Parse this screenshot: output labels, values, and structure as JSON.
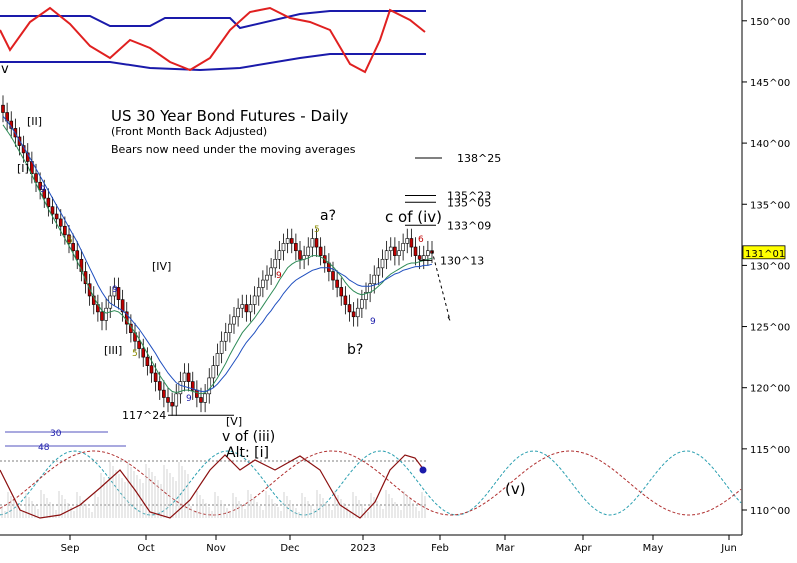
{
  "chart_data": {
    "type": "candlestick",
    "title": "US 30 Year Bond Futures - Daily",
    "subtitle": "(Front Month Back Adjusted)",
    "note": "Bears now need under the moving averages",
    "x_ticks": [
      "Sep",
      "Oct",
      "Nov",
      "Dec",
      "2023",
      "Feb",
      "Mar",
      "Apr",
      "May",
      "Jun"
    ],
    "y_ticks": [
      "150^00",
      "145^00",
      "140^00",
      "135^00",
      "130^00",
      "125^00",
      "120^00",
      "115^00",
      "110^00"
    ],
    "ylim": [
      109.5,
      152.5
    ],
    "last_price_label": "131^01",
    "last_price": 131.03,
    "price_levels": [
      {
        "label": "138^25",
        "value": 138.78
      },
      {
        "label": "135^23",
        "value": 135.72
      },
      {
        "label": "135^05",
        "value": 135.16
      },
      {
        "label": "133^09",
        "value": 133.28
      },
      {
        "label": "130^13",
        "value": 130.41
      },
      {
        "label": "117^24",
        "value": 117.75
      }
    ],
    "wave_labels": [
      "[II]",
      "[I]",
      "[IV]",
      "[III]",
      "[V]",
      "v of (iii)",
      "Alt: [i]",
      "a?",
      "b?",
      "c of (iv)",
      "(v)",
      "v"
    ],
    "count_labels": [
      "9",
      "5",
      "9",
      "5",
      "9",
      "9",
      "5",
      "9",
      "6"
    ],
    "cycle_labels": [
      "30",
      "48"
    ],
    "closes": [
      142.5,
      141.8,
      141.2,
      140.5,
      139.8,
      139.2,
      138.5,
      137.5,
      136.8,
      136.2,
      135.5,
      134.8,
      134.2,
      133.8,
      133.2,
      132.5,
      131.8,
      131.2,
      130.5,
      129.5,
      128.5,
      127.5,
      126.8,
      126.2,
      125.5,
      126.5,
      127.5,
      128.2,
      127.2,
      126.2,
      125.2,
      124.5,
      123.8,
      123.2,
      122.5,
      121.8,
      121.2,
      120.5,
      119.8,
      119.2,
      118.8,
      118.5,
      119.5,
      120.5,
      121.2,
      120.5,
      119.8,
      119.2,
      118.8,
      119.5,
      120.8,
      121.8,
      122.8,
      123.8,
      124.5,
      125.2,
      125.8,
      126.5,
      126.8,
      126.2,
      126.8,
      127.5,
      128.2,
      128.8,
      129.2,
      129.8,
      130.5,
      131.2,
      131.8,
      132.2,
      131.8,
      131.2,
      130.5,
      130.8,
      131.5,
      132.2,
      131.5,
      130.8,
      130.2,
      129.5,
      128.8,
      128.2,
      127.5,
      126.8,
      126.2,
      125.8,
      126.5,
      127.2,
      127.8,
      128.5,
      129.2,
      129.8,
      130.5,
      131.2,
      131.5,
      130.8,
      131.2,
      131.8,
      132.2,
      131.5,
      130.8,
      130.5,
      130.8,
      131.2,
      131.0
    ],
    "ma_fast": [
      141.5,
      141.0,
      140.5,
      139.9,
      139.3,
      138.7,
      138.1,
      137.4,
      136.7,
      136.0,
      135.3,
      134.6,
      134.0,
      133.4,
      132.8,
      132.2,
      131.6,
      131.0,
      130.3,
      129.6,
      128.8,
      128.1,
      127.4,
      126.8,
      126.3,
      126.1,
      126.2,
      126.3,
      126.2,
      125.9,
      125.5,
      125.0,
      124.5,
      124.0,
      123.4,
      122.8,
      122.2,
      121.6,
      121.0,
      120.5,
      120.0,
      119.7,
      119.6,
      119.7,
      119.8,
      119.8,
      119.7,
      119.6,
      119.5,
      119.6,
      119.9,
      120.3,
      120.8,
      121.4,
      122.0,
      122.7,
      123.3,
      123.9,
      124.5,
      124.9,
      125.3,
      125.7,
      126.2,
      126.7,
      127.2,
      127.7,
      128.2,
      128.8,
      129.3,
      129.8,
      130.1,
      130.3,
      130.4,
      130.5,
      130.6,
      130.8,
      130.8,
      130.7,
      130.5,
      130.2,
      129.9,
      129.5,
      129.1,
      128.6,
      128.2,
      127.9,
      127.7,
      127.6,
      127.7,
      127.8,
      128.0,
      128.3,
      128.6,
      129.0,
      129.3,
      129.5,
      129.7,
      129.9,
      130.1,
      130.2,
      130.2,
      130.3,
      130.4,
      130.5,
      130.6
    ],
    "ma_slow": [
      142.2,
      141.8,
      141.3,
      140.8,
      140.2,
      139.7,
      139.1,
      138.5,
      137.9,
      137.3,
      136.7,
      136.1,
      135.5,
      134.9,
      134.3,
      133.7,
      133.1,
      132.5,
      131.9,
      131.2,
      130.5,
      129.8,
      129.1,
      128.4,
      127.8,
      127.3,
      126.9,
      126.7,
      126.5,
      126.3,
      126.0,
      125.6,
      125.2,
      124.8,
      124.3,
      123.8,
      123.3,
      122.8,
      122.2,
      121.7,
      121.2,
      120.8,
      120.4,
      120.2,
      120.1,
      120.0,
      119.9,
      119.8,
      119.7,
      119.7,
      119.8,
      120.0,
      120.3,
      120.7,
      121.1,
      121.6,
      122.1,
      122.6,
      123.2,
      123.7,
      124.1,
      124.5,
      125.0,
      125.4,
      125.9,
      126.3,
      126.8,
      127.2,
      127.7,
      128.1,
      128.5,
      128.8,
      129.0,
      129.2,
      129.4,
      129.6,
      129.7,
      129.8,
      129.8,
      129.8,
      129.7,
      129.5,
      129.3,
      129.1,
      128.8,
      128.6,
      128.4,
      128.3,
      128.3,
      128.3,
      128.4,
      128.5,
      128.7,
      128.9,
      129.1,
      129.3,
      129.4,
      129.6,
      129.7,
      129.8,
      129.9,
      129.9,
      130.0,
      130.0,
      130.1
    ],
    "grid": false,
    "colors": {
      "candle_up": "#ffffff",
      "candle_down": "#c00000",
      "ma_fast": "#2e8b57",
      "ma_slow": "#1f4fbf",
      "osc_red": "#e02020",
      "osc_blue": "#1a1aaa",
      "cycle_teal": "#2a9fb0",
      "cycle_red": "#b03030",
      "wick": "#000000"
    }
  }
}
